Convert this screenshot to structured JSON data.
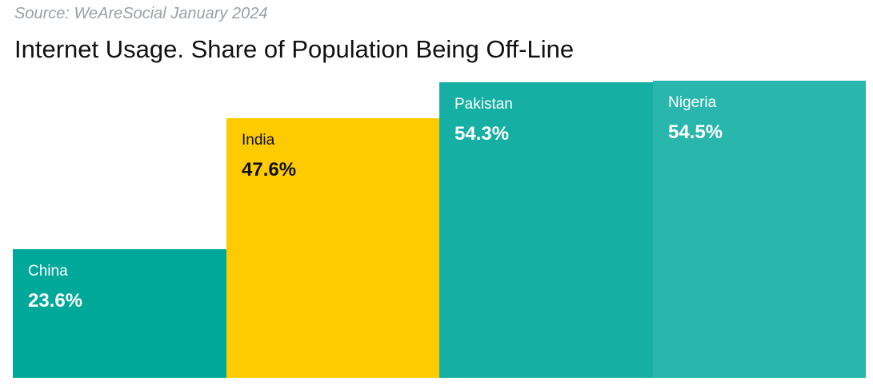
{
  "header": {
    "source": "Source: WeAreSocial January 2024",
    "title": "Internet Usage. Share of Population Being Off-Line"
  },
  "chart_data": {
    "type": "bar",
    "title": "Internet Usage. Share of Population Being Off-Line",
    "subtitle": "Source: WeAreSocial January 2024",
    "xlabel": "",
    "ylabel": "",
    "ylim": [
      0,
      55
    ],
    "grid": false,
    "categories": [
      "China",
      "India",
      "Pakistan",
      "Nigeria"
    ],
    "values": [
      23.6,
      47.6,
      54.3,
      54.5
    ],
    "labels": [
      "23.6%",
      "47.6%",
      "54.3%",
      "54.5%"
    ],
    "colors": [
      "#00a89a",
      "#fecb00",
      "#16afa3",
      "#29b7ad"
    ],
    "text_colors": [
      "#ffffff",
      "#111111",
      "#ffffff",
      "#ffffff"
    ]
  }
}
